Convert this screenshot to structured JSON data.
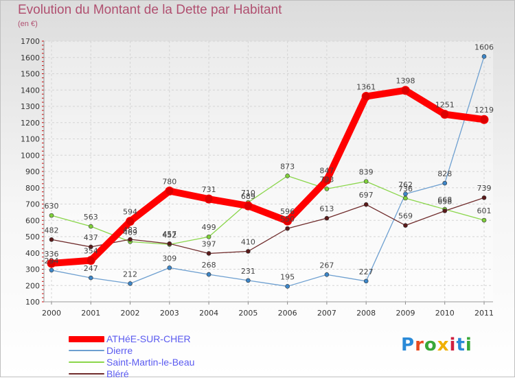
{
  "header": {
    "title": "Evolution du Montant de la Dette par Habitant",
    "subtitle": "(en €)"
  },
  "logo": {
    "text": "Proxiti",
    "letter_colors": [
      "#2a8ad8",
      "#e84a20",
      "#38a838",
      "#f0b000",
      "#d02040",
      "#2a8ad8",
      "#38a838"
    ]
  },
  "chart_data": {
    "type": "line",
    "title": "Evolution du Montant de la Dette par Habitant",
    "subtitle": "(en €)",
    "xlabel": "",
    "ylabel": "",
    "x": [
      "2000",
      "2001",
      "2002",
      "2003",
      "2004",
      "2005",
      "2006",
      "2007",
      "2008",
      "2009",
      "2010",
      "2011"
    ],
    "ylim": [
      100,
      1700
    ],
    "yticks": [
      100,
      200,
      300,
      400,
      500,
      600,
      700,
      800,
      900,
      1000,
      1100,
      1200,
      1300,
      1400,
      1500,
      1600,
      1700
    ],
    "grid": true,
    "legend_position": "bottom-left",
    "series": [
      {
        "name": "ATHéE-SUR-CHER",
        "color": "#ff0000",
        "values": [
          336,
          354,
          594,
          780,
          731,
          689,
          596,
          847,
          1361,
          1398,
          1251,
          1219
        ]
      },
      {
        "name": "Dierre",
        "color": "#6d9fd0",
        "values": [
          294,
          247,
          212,
          309,
          268,
          231,
          195,
          267,
          227,
          762,
          828,
          1606
        ]
      },
      {
        "name": "Saint-Martin-le-Beau",
        "color": "#8ad64a",
        "values": [
          630,
          563,
          469,
          452,
          499,
          710,
          873,
          793,
          839,
          736,
          668,
          601
        ]
      },
      {
        "name": "Bléré",
        "color": "#6e2a2a",
        "values": [
          482,
          437,
          483,
          457,
          397,
          410,
          550,
          613,
          697,
          569,
          658,
          739
        ]
      }
    ]
  }
}
